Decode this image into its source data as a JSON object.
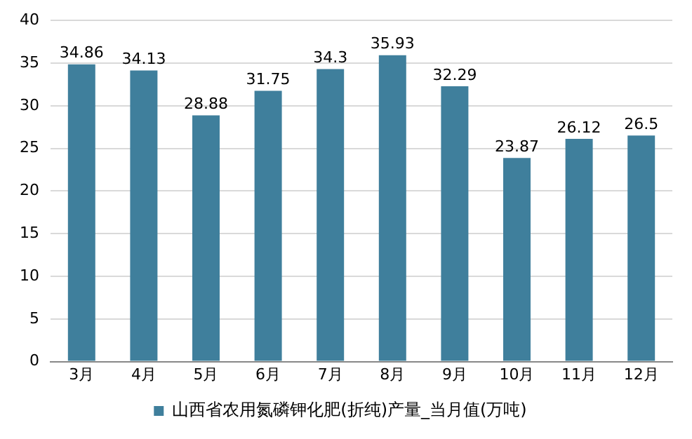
{
  "chart_data": {
    "type": "bar",
    "categories": [
      "3月",
      "4月",
      "5月",
      "6月",
      "7月",
      "8月",
      "9月",
      "10月",
      "11月",
      "12月"
    ],
    "series": [
      {
        "name": "山西省农用氮磷钾化肥(折纯)产量_当月值(万吨)",
        "color": "#3f7f9c",
        "values": [
          34.86,
          34.13,
          28.88,
          31.75,
          34.3,
          35.93,
          32.29,
          23.87,
          26.12,
          26.5
        ]
      }
    ],
    "ylim": [
      0,
      40
    ],
    "yticks": [
      0,
      5,
      10,
      15,
      20,
      25,
      30,
      35,
      40
    ],
    "grid": "y",
    "legend": "bottom",
    "data_labels": true
  }
}
